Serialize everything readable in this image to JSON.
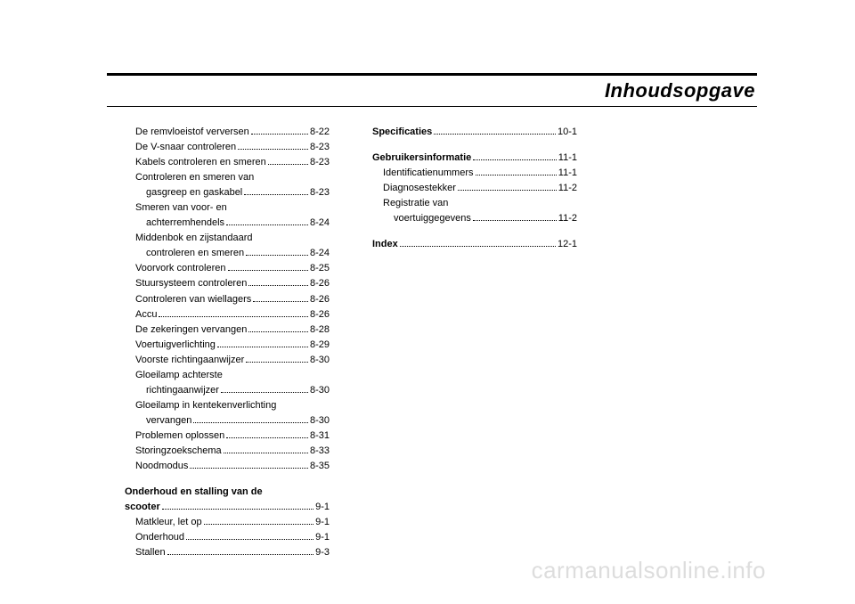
{
  "title": "Inhoudsopgave",
  "watermark": "carmanualsonline.info",
  "col1": {
    "items": [
      {
        "type": "entry",
        "indent": true,
        "label": "De remvloeistof verversen",
        "page": "8-22"
      },
      {
        "type": "entry",
        "indent": true,
        "label": "De V-snaar controleren",
        "page": "8-23"
      },
      {
        "type": "entry",
        "indent": true,
        "label": "Kabels controleren en smeren",
        "page": "8-23"
      },
      {
        "type": "cont",
        "indent": true,
        "text": "Controleren en smeren van"
      },
      {
        "type": "entry",
        "indent": true,
        "pad": true,
        "label": "gasgreep en gaskabel",
        "page": "8-23"
      },
      {
        "type": "cont",
        "indent": true,
        "text": "Smeren van voor- en"
      },
      {
        "type": "entry",
        "indent": true,
        "pad": true,
        "label": "achterremhendels",
        "page": "8-24"
      },
      {
        "type": "cont",
        "indent": true,
        "text": "Middenbok en zijstandaard"
      },
      {
        "type": "entry",
        "indent": true,
        "pad": true,
        "label": "controleren en smeren",
        "page": "8-24"
      },
      {
        "type": "entry",
        "indent": true,
        "label": "Voorvork controleren",
        "page": "8-25"
      },
      {
        "type": "entry",
        "indent": true,
        "label": "Stuursysteem controleren",
        "page": "8-26"
      },
      {
        "type": "entry",
        "indent": true,
        "label": "Controleren van wiellagers",
        "page": "8-26"
      },
      {
        "type": "entry",
        "indent": true,
        "label": "Accu",
        "page": "8-26"
      },
      {
        "type": "entry",
        "indent": true,
        "label": "De zekeringen vervangen",
        "page": "8-28"
      },
      {
        "type": "entry",
        "indent": true,
        "label": "Voertuigverlichting",
        "page": "8-29"
      },
      {
        "type": "entry",
        "indent": true,
        "label": "Voorste richtingaanwijzer",
        "page": "8-30"
      },
      {
        "type": "cont",
        "indent": true,
        "text": "Gloeilamp achterste"
      },
      {
        "type": "entry",
        "indent": true,
        "pad": true,
        "label": "richtingaanwijzer",
        "page": "8-30"
      },
      {
        "type": "cont",
        "indent": true,
        "text": "Gloeilamp in kentekenverlichting"
      },
      {
        "type": "entry",
        "indent": true,
        "pad": true,
        "label": "vervangen",
        "page": "8-30"
      },
      {
        "type": "entry",
        "indent": true,
        "label": "Problemen oplossen",
        "page": "8-31"
      },
      {
        "type": "entry",
        "indent": true,
        "label": "Storingzoekschema",
        "page": "8-33"
      },
      {
        "type": "entry",
        "indent": true,
        "label": "Noodmodus",
        "page": "8-35"
      },
      {
        "type": "spacer"
      },
      {
        "type": "cont",
        "indent": false,
        "bold": true,
        "text": "Onderhoud en stalling van de"
      },
      {
        "type": "entry",
        "indent": false,
        "bold": true,
        "label": "scooter",
        "page": "9-1"
      },
      {
        "type": "entry",
        "indent": true,
        "label": "Matkleur, let op",
        "page": "9-1"
      },
      {
        "type": "entry",
        "indent": true,
        "label": "Onderhoud",
        "page": "9-1"
      },
      {
        "type": "entry",
        "indent": true,
        "label": "Stallen",
        "page": "9-3"
      }
    ]
  },
  "col2": {
    "items": [
      {
        "type": "entry",
        "indent": false,
        "bold": true,
        "label": "Specificaties",
        "page": "10-1"
      },
      {
        "type": "spacer"
      },
      {
        "type": "entry",
        "indent": false,
        "bold": true,
        "label": "Gebruikersinformatie",
        "page": "11-1"
      },
      {
        "type": "entry",
        "indent": true,
        "label": "Identificatienummers",
        "page": "11-1"
      },
      {
        "type": "entry",
        "indent": true,
        "label": "Diagnosestekker",
        "page": "11-2"
      },
      {
        "type": "cont",
        "indent": true,
        "text": "Registratie van"
      },
      {
        "type": "entry",
        "indent": true,
        "pad": true,
        "label": "voertuiggegevens",
        "page": "11-2"
      },
      {
        "type": "spacer"
      },
      {
        "type": "entry",
        "indent": false,
        "bold": true,
        "label": "Index",
        "page": "12-1"
      }
    ]
  }
}
